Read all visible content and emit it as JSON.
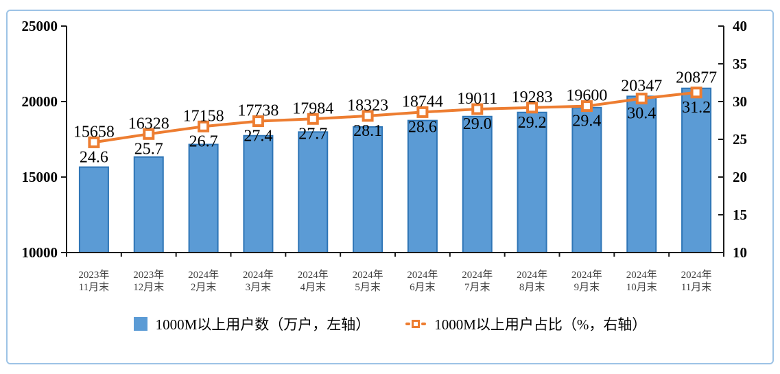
{
  "panel": {
    "background": "#FFFFFF",
    "border_color": "#9DC3E6"
  },
  "chart_data": {
    "type": "bar",
    "subtype": "bar-line-combo",
    "title": "",
    "grid": false,
    "legend_position": "bottom",
    "categories": [
      [
        "2023年",
        "11月末"
      ],
      [
        "2023年",
        "12月末"
      ],
      [
        "2024年",
        "2月末"
      ],
      [
        "2024年",
        "3月末"
      ],
      [
        "2024年",
        "4月末"
      ],
      [
        "2024年",
        "5月末"
      ],
      [
        "2024年",
        "6月末"
      ],
      [
        "2024年",
        "7月末"
      ],
      [
        "2024年",
        "8月末"
      ],
      [
        "2024年",
        "9月末"
      ],
      [
        "2024年",
        "10月末"
      ],
      [
        "2024年",
        "11月末"
      ]
    ],
    "series": [
      {
        "name": "1000M以上用户数（万户，左轴）",
        "type": "bar",
        "axis": "left",
        "color": "#5B9BD5",
        "border_color": "#2E75B6",
        "values": [
          15658,
          16328,
          17158,
          17738,
          17984,
          18323,
          18744,
          19011,
          19283,
          19600,
          20347,
          20877
        ]
      },
      {
        "name": "1000M以上用户占比（%，右轴）",
        "type": "line",
        "axis": "right",
        "color": "#ED7D31",
        "marker": "square-white-fill",
        "values": [
          "24.6",
          "25.7",
          "26.7",
          "27.4",
          "27.7",
          "28.1",
          "28.6",
          "29.0",
          "29.2",
          "29.4",
          "30.4",
          "31.2"
        ]
      }
    ],
    "left_axis": {
      "min": 10000,
      "max": 25000,
      "ticks": [
        10000,
        15000,
        20000,
        25000
      ]
    },
    "right_axis": {
      "min": 10,
      "max": 40,
      "ticks": [
        10,
        15,
        20,
        25,
        30,
        35,
        40
      ]
    }
  }
}
